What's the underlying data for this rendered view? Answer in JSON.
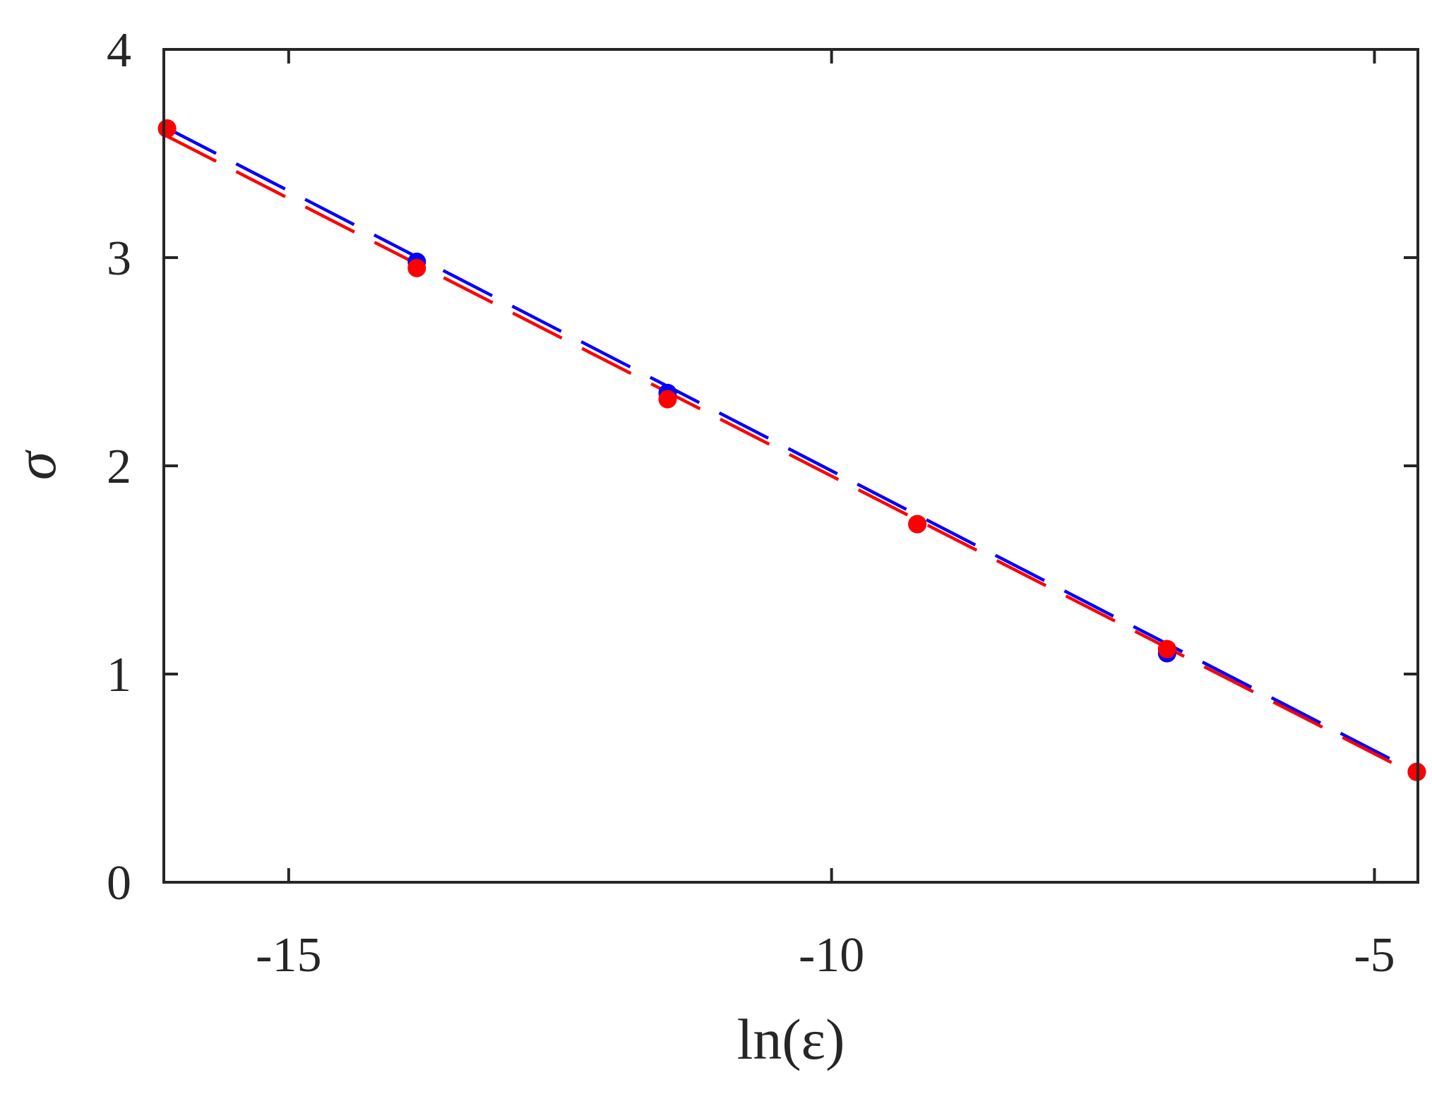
{
  "chart_data": {
    "type": "scatter",
    "xlabel": "ln(ε)",
    "ylabel": "σ",
    "xlim": [
      -16.15,
      -4.6
    ],
    "ylim": [
      0,
      4
    ],
    "xticks": [
      -15,
      -10,
      -5
    ],
    "xtick_labels": [
      "-15",
      "-10",
      "-5"
    ],
    "yticks": [
      0,
      1,
      2,
      3,
      4
    ],
    "ytick_labels": [
      "0",
      "1",
      "2",
      "3",
      "4"
    ],
    "grid": false,
    "series": [
      {
        "color": "#0000ff",
        "style": "markers+dashed-fit",
        "points": [
          {
            "x": -16.12,
            "y": 3.62
          },
          {
            "x": -13.82,
            "y": 2.98
          },
          {
            "x": -11.51,
            "y": 2.35
          },
          {
            "x": -9.21,
            "y": 1.72
          },
          {
            "x": -6.91,
            "y": 1.1
          },
          {
            "x": -4.61,
            "y": 0.53
          }
        ],
        "fit": [
          {
            "x": -16.12,
            "y": 3.615
          },
          {
            "x": -4.61,
            "y": 0.52
          }
        ]
      },
      {
        "color": "#ff0000",
        "style": "markers+dashed-fit",
        "points": [
          {
            "x": -16.12,
            "y": 3.62
          },
          {
            "x": -13.82,
            "y": 2.95
          },
          {
            "x": -11.51,
            "y": 2.32
          },
          {
            "x": -9.21,
            "y": 1.72
          },
          {
            "x": -6.91,
            "y": 1.12
          },
          {
            "x": -4.61,
            "y": 0.53
          }
        ],
        "fit": [
          {
            "x": -16.12,
            "y": 3.59
          },
          {
            "x": -4.61,
            "y": 0.52
          }
        ]
      }
    ]
  }
}
